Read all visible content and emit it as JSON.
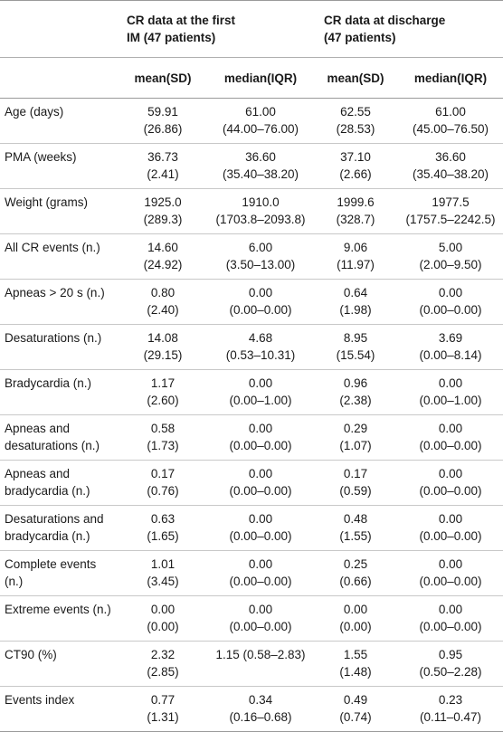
{
  "header": {
    "group1": [
      "CR data at the first",
      "IM (47 patients)"
    ],
    "group2": [
      "CR data at discharge",
      "(47 patients)"
    ],
    "sub": [
      "mean(SD)",
      "median(IQR)",
      "mean(SD)",
      "median(IQR)"
    ]
  },
  "rows": [
    {
      "label": [
        "Age (days)"
      ],
      "cells": [
        [
          "59.91",
          "(26.86)"
        ],
        [
          "61.00",
          "(44.00–76.00)"
        ],
        [
          "62.55",
          "(28.53)"
        ],
        [
          "61.00",
          "(45.00–76.50)"
        ]
      ]
    },
    {
      "label": [
        "PMA (weeks)"
      ],
      "cells": [
        [
          "36.73",
          "(2.41)"
        ],
        [
          "36.60",
          "(35.40–38.20)"
        ],
        [
          "37.10",
          "(2.66)"
        ],
        [
          "36.60",
          "(35.40–38.20)"
        ]
      ]
    },
    {
      "label": [
        "Weight (grams)"
      ],
      "cells": [
        [
          "1925.0",
          "(289.3)"
        ],
        [
          "1910.0",
          "(1703.8–2093.8)"
        ],
        [
          "1999.6",
          "(328.7)"
        ],
        [
          "1977.5",
          "(1757.5–2242.5)"
        ]
      ]
    },
    {
      "label": [
        "All CR events (n.)"
      ],
      "cells": [
        [
          "14.60",
          "(24.92)"
        ],
        [
          "6.00",
          "(3.50–13.00)"
        ],
        [
          "9.06",
          "(11.97)"
        ],
        [
          "5.00",
          "(2.00–9.50)"
        ]
      ]
    },
    {
      "label": [
        "Apneas > 20 s (n.)"
      ],
      "cells": [
        [
          "0.80",
          "(2.40)"
        ],
        [
          "0.00",
          "(0.00–0.00)"
        ],
        [
          "0.64",
          "(1.98)"
        ],
        [
          "0.00",
          "(0.00–0.00)"
        ]
      ]
    },
    {
      "label": [
        "Desaturations (n.)"
      ],
      "cells": [
        [
          "14.08",
          "(29.15)"
        ],
        [
          "4.68",
          "(0.53–10.31)"
        ],
        [
          "8.95",
          "(15.54)"
        ],
        [
          "3.69",
          "(0.00–8.14)"
        ]
      ]
    },
    {
      "label": [
        "Bradycardia (n.)"
      ],
      "cells": [
        [
          "1.17",
          "(2.60)"
        ],
        [
          "0.00",
          "(0.00–1.00)"
        ],
        [
          "0.96",
          "(2.38)"
        ],
        [
          "0.00",
          "(0.00–1.00)"
        ]
      ]
    },
    {
      "label": [
        "Apneas and",
        "desaturations (n.)"
      ],
      "cells": [
        [
          "0.58",
          "(1.73)"
        ],
        [
          "0.00",
          "(0.00–0.00)"
        ],
        [
          "0.29",
          "(1.07)"
        ],
        [
          "0.00",
          "(0.00–0.00)"
        ]
      ]
    },
    {
      "label": [
        "Apneas and",
        "bradycardia (n.)"
      ],
      "cells": [
        [
          "0.17",
          "(0.76)"
        ],
        [
          "0.00",
          "(0.00–0.00)"
        ],
        [
          "0.17",
          "(0.59)"
        ],
        [
          "0.00",
          "(0.00–0.00)"
        ]
      ]
    },
    {
      "label": [
        "Desaturations and",
        "bradycardia (n.)"
      ],
      "cells": [
        [
          "0.63",
          "(1.65)"
        ],
        [
          "0.00",
          "(0.00–0.00)"
        ],
        [
          "0.48",
          "(1.55)"
        ],
        [
          "0.00",
          "(0.00–0.00)"
        ]
      ]
    },
    {
      "label": [
        "Complete events (n.)"
      ],
      "cells": [
        [
          "1.01",
          "(3.45)"
        ],
        [
          "0.00",
          "(0.00–0.00)"
        ],
        [
          "0.25",
          "(0.66)"
        ],
        [
          "0.00",
          "(0.00–0.00)"
        ]
      ]
    },
    {
      "label": [
        "Extreme events (n.)"
      ],
      "cells": [
        [
          "0.00",
          "(0.00)"
        ],
        [
          "0.00",
          "(0.00–0.00)"
        ],
        [
          "0.00",
          "(0.00)"
        ],
        [
          "0.00",
          "(0.00–0.00)"
        ]
      ]
    },
    {
      "label": [
        "CT90 (%)"
      ],
      "cells": [
        [
          "2.32",
          "(2.85)"
        ],
        [
          "1.15 (0.58–2.83)"
        ],
        [
          "1.55",
          "(1.48)"
        ],
        [
          "0.95",
          "(0.50–2.28)"
        ]
      ]
    },
    {
      "label": [
        "Events index"
      ],
      "cells": [
        [
          "0.77",
          "(1.31)"
        ],
        [
          "0.34",
          "(0.16–0.68)"
        ],
        [
          "0.49",
          "(0.74)"
        ],
        [
          "0.23",
          "(0.11–0.47)"
        ]
      ]
    }
  ]
}
